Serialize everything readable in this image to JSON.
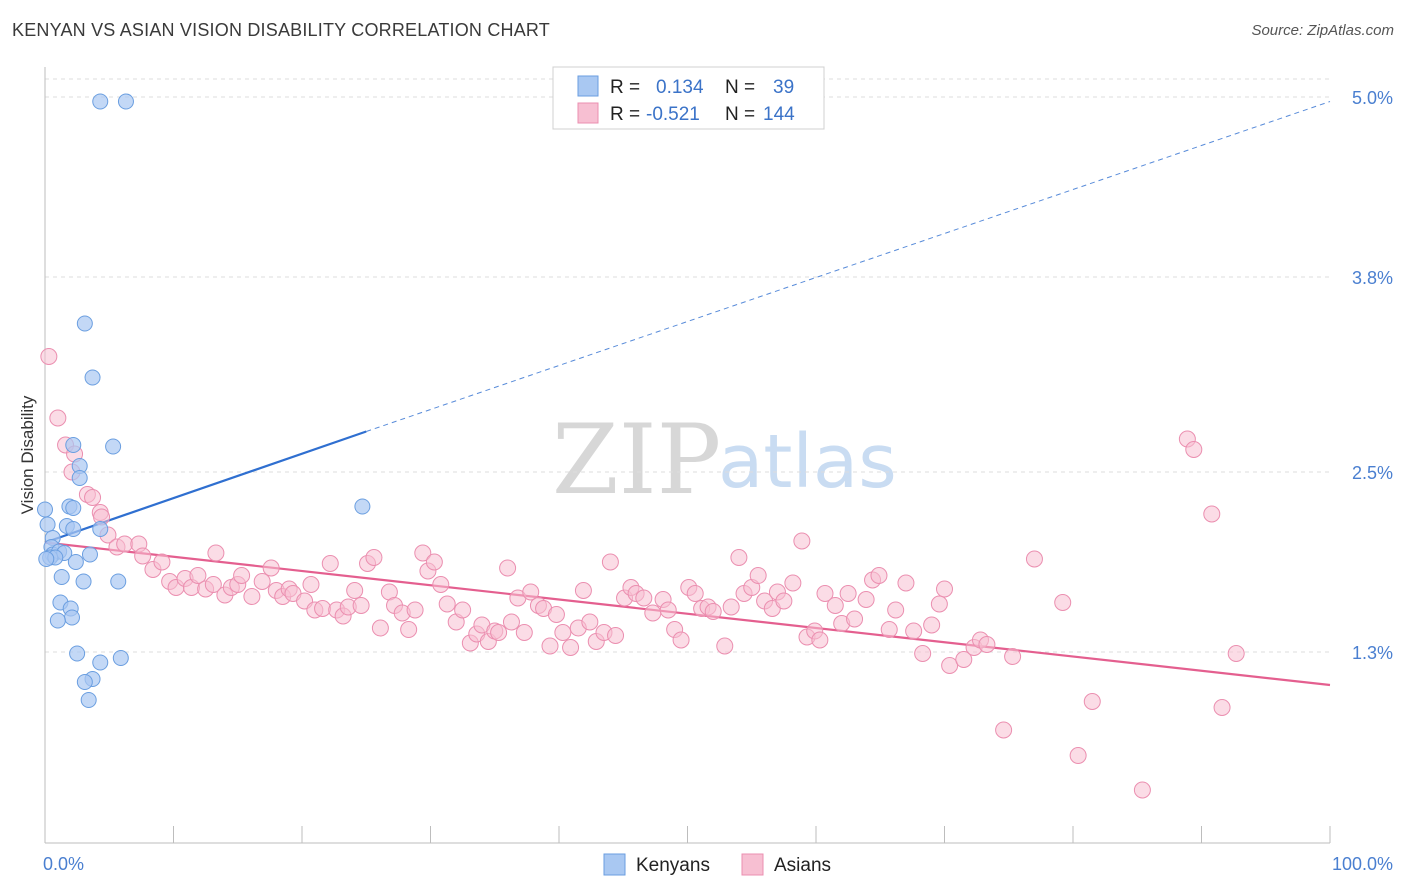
{
  "title": "KENYAN VS ASIAN VISION DISABILITY CORRELATION CHART",
  "source": "Source: ZipAtlas.com",
  "watermark": {
    "left": "ZIP",
    "right": "atlas"
  },
  "colors": {
    "kenyans_fill": "#a9c8f2",
    "kenyans_stroke": "#6a9ee0",
    "kenyans_line": "#2f6fd0",
    "asians_fill": "#f7bfd2",
    "asians_stroke": "#eb8fb0",
    "asians_line": "#e45f8f",
    "tick_label": "#4a7fd0",
    "grid": "#dddddd"
  },
  "legend": {
    "rows": [
      {
        "r_label": "R =",
        "r_value": "0.134",
        "n_label": "N =",
        "n_value": "39"
      },
      {
        "r_label": "R =",
        "r_value": "-0.521",
        "n_label": "N =",
        "n_value": "144"
      }
    ]
  },
  "bottom_legend": [
    "Kenyans",
    "Asians"
  ],
  "chart_data": {
    "type": "scatter",
    "title": "KENYAN VS ASIAN VISION DISABILITY CORRELATION CHART",
    "xlabel": "",
    "ylabel": "Vision Disability",
    "xlim": [
      0,
      100
    ],
    "ylim": [
      0.15,
      5.2
    ],
    "x_tick_labels": [
      "0.0%",
      "100.0%"
    ],
    "y_ticks": [
      1.3,
      2.5,
      3.8,
      5.0
    ],
    "y_tick_labels": [
      "1.3%",
      "2.5%",
      "3.8%",
      "5.0%"
    ],
    "grid": true,
    "legend_position": "top-center",
    "series": [
      {
        "name": "Kenyans",
        "r": 0.134,
        "n": 39,
        "trend": {
          "x": [
            0,
            25
          ],
          "y": [
            2.03,
            2.77
          ],
          "extended_to": [
            100,
            4.97
          ]
        },
        "points": [
          [
            4.3,
            4.97
          ],
          [
            6.3,
            4.97
          ],
          [
            3.1,
            3.49
          ],
          [
            3.7,
            3.13
          ],
          [
            5.3,
            2.67
          ],
          [
            2.2,
            2.68
          ],
          [
            2.7,
            2.54
          ],
          [
            2.7,
            2.46
          ],
          [
            0.0,
            2.25
          ],
          [
            1.9,
            2.27
          ],
          [
            2.2,
            2.26
          ],
          [
            24.7,
            2.27
          ],
          [
            0.2,
            2.15
          ],
          [
            1.7,
            2.14
          ],
          [
            2.2,
            2.12
          ],
          [
            4.3,
            2.12
          ],
          [
            0.6,
            2.06
          ],
          [
            0.5,
            2.0
          ],
          [
            0.6,
            1.95
          ],
          [
            1.1,
            1.97
          ],
          [
            1.5,
            1.96
          ],
          [
            3.5,
            1.95
          ],
          [
            0.4,
            1.93
          ],
          [
            0.8,
            1.93
          ],
          [
            2.4,
            1.9
          ],
          [
            1.3,
            1.8
          ],
          [
            3.0,
            1.77
          ],
          [
            5.7,
            1.77
          ],
          [
            1.2,
            1.63
          ],
          [
            2.0,
            1.59
          ],
          [
            2.1,
            1.53
          ],
          [
            1.0,
            1.51
          ],
          [
            2.5,
            1.29
          ],
          [
            5.9,
            1.26
          ],
          [
            4.3,
            1.23
          ],
          [
            3.7,
            1.12
          ],
          [
            3.1,
            1.1
          ],
          [
            3.4,
            0.98
          ],
          [
            0.1,
            1.92
          ]
        ]
      },
      {
        "name": "Asians",
        "r": -0.521,
        "n": 144,
        "trend": {
          "x": [
            0,
            100
          ],
          "y": [
            2.03,
            1.08
          ]
        },
        "points": [
          [
            0.3,
            3.27
          ],
          [
            1.0,
            2.86
          ],
          [
            1.6,
            2.68
          ],
          [
            2.1,
            2.5
          ],
          [
            2.3,
            2.62
          ],
          [
            3.3,
            2.35
          ],
          [
            3.7,
            2.33
          ],
          [
            4.3,
            2.23
          ],
          [
            4.4,
            2.2
          ],
          [
            4.9,
            2.08
          ],
          [
            5.6,
            2.0
          ],
          [
            6.2,
            2.02
          ],
          [
            7.3,
            2.02
          ],
          [
            7.6,
            1.94
          ],
          [
            8.4,
            1.85
          ],
          [
            9.1,
            1.9
          ],
          [
            9.7,
            1.77
          ],
          [
            10.2,
            1.73
          ],
          [
            10.9,
            1.79
          ],
          [
            11.4,
            1.73
          ],
          [
            11.9,
            1.81
          ],
          [
            12.5,
            1.72
          ],
          [
            13.1,
            1.75
          ],
          [
            13.3,
            1.96
          ],
          [
            14.0,
            1.68
          ],
          [
            14.5,
            1.73
          ],
          [
            15.0,
            1.75
          ],
          [
            15.3,
            1.81
          ],
          [
            16.1,
            1.67
          ],
          [
            16.9,
            1.77
          ],
          [
            17.6,
            1.86
          ],
          [
            18.0,
            1.71
          ],
          [
            18.5,
            1.67
          ],
          [
            19.0,
            1.72
          ],
          [
            19.3,
            1.69
          ],
          [
            20.2,
            1.64
          ],
          [
            20.7,
            1.75
          ],
          [
            21.0,
            1.58
          ],
          [
            21.6,
            1.59
          ],
          [
            22.2,
            1.89
          ],
          [
            22.7,
            1.58
          ],
          [
            23.2,
            1.54
          ],
          [
            23.6,
            1.6
          ],
          [
            24.1,
            1.71
          ],
          [
            24.6,
            1.61
          ],
          [
            25.1,
            1.89
          ],
          [
            25.6,
            1.93
          ],
          [
            26.1,
            1.46
          ],
          [
            26.8,
            1.7
          ],
          [
            27.2,
            1.61
          ],
          [
            27.8,
            1.56
          ],
          [
            28.3,
            1.45
          ],
          [
            28.8,
            1.58
          ],
          [
            29.4,
            1.96
          ],
          [
            29.8,
            1.84
          ],
          [
            30.3,
            1.9
          ],
          [
            30.8,
            1.75
          ],
          [
            31.3,
            1.62
          ],
          [
            32.0,
            1.5
          ],
          [
            32.5,
            1.58
          ],
          [
            33.1,
            1.36
          ],
          [
            33.6,
            1.42
          ],
          [
            34.0,
            1.48
          ],
          [
            34.5,
            1.37
          ],
          [
            35.0,
            1.44
          ],
          [
            35.3,
            1.43
          ],
          [
            36.0,
            1.86
          ],
          [
            36.3,
            1.5
          ],
          [
            36.8,
            1.66
          ],
          [
            37.3,
            1.43
          ],
          [
            37.8,
            1.7
          ],
          [
            38.4,
            1.61
          ],
          [
            38.8,
            1.59
          ],
          [
            39.3,
            1.34
          ],
          [
            39.8,
            1.55
          ],
          [
            40.3,
            1.43
          ],
          [
            40.9,
            1.33
          ],
          [
            41.5,
            1.46
          ],
          [
            41.9,
            1.71
          ],
          [
            42.4,
            1.5
          ],
          [
            42.9,
            1.37
          ],
          [
            43.5,
            1.43
          ],
          [
            44.0,
            1.9
          ],
          [
            44.4,
            1.41
          ],
          [
            45.1,
            1.66
          ],
          [
            45.6,
            1.73
          ],
          [
            46.0,
            1.69
          ],
          [
            46.6,
            1.66
          ],
          [
            47.3,
            1.56
          ],
          [
            48.1,
            1.65
          ],
          [
            48.5,
            1.58
          ],
          [
            49.0,
            1.45
          ],
          [
            49.5,
            1.38
          ],
          [
            50.1,
            1.73
          ],
          [
            50.6,
            1.69
          ],
          [
            51.1,
            1.59
          ],
          [
            51.6,
            1.6
          ],
          [
            52.0,
            1.57
          ],
          [
            52.9,
            1.34
          ],
          [
            53.4,
            1.6
          ],
          [
            54.0,
            1.93
          ],
          [
            54.4,
            1.69
          ],
          [
            55.0,
            1.73
          ],
          [
            55.5,
            1.81
          ],
          [
            56.0,
            1.64
          ],
          [
            56.6,
            1.59
          ],
          [
            57.0,
            1.7
          ],
          [
            57.5,
            1.64
          ],
          [
            58.2,
            1.76
          ],
          [
            58.9,
            2.04
          ],
          [
            59.3,
            1.4
          ],
          [
            59.9,
            1.44
          ],
          [
            60.3,
            1.38
          ],
          [
            60.7,
            1.69
          ],
          [
            61.5,
            1.61
          ],
          [
            62.0,
            1.49
          ],
          [
            62.5,
            1.69
          ],
          [
            63.0,
            1.52
          ],
          [
            63.9,
            1.65
          ],
          [
            64.4,
            1.78
          ],
          [
            64.9,
            1.81
          ],
          [
            65.7,
            1.45
          ],
          [
            66.2,
            1.58
          ],
          [
            67.0,
            1.76
          ],
          [
            67.6,
            1.44
          ],
          [
            68.3,
            1.29
          ],
          [
            69.0,
            1.48
          ],
          [
            69.6,
            1.62
          ],
          [
            70.0,
            1.72
          ],
          [
            70.4,
            1.21
          ],
          [
            71.5,
            1.25
          ],
          [
            72.3,
            1.33
          ],
          [
            72.8,
            1.38
          ],
          [
            73.3,
            1.35
          ],
          [
            74.6,
            0.78
          ],
          [
            75.3,
            1.27
          ],
          [
            77.0,
            1.92
          ],
          [
            79.2,
            1.63
          ],
          [
            80.4,
            0.61
          ],
          [
            81.5,
            0.97
          ],
          [
            85.4,
            0.38
          ],
          [
            88.9,
            2.72
          ],
          [
            89.4,
            2.65
          ],
          [
            90.8,
            2.22
          ],
          [
            91.6,
            0.93
          ],
          [
            92.7,
            1.29
          ]
        ]
      }
    ]
  }
}
